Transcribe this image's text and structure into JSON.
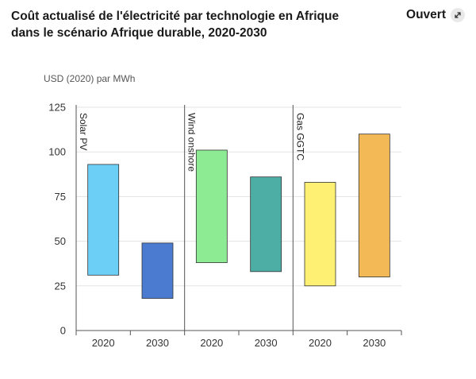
{
  "header": {
    "title": "Coût actualisé de l'électricité par technologie en Afrique dans le scénario Afrique durable, 2020-2030",
    "open_label": "Ouvert"
  },
  "chart_data": {
    "type": "bar",
    "unit_label": "USD (2020) par MWh",
    "ylim": [
      0,
      125
    ],
    "yticks": [
      0,
      25,
      50,
      75,
      100,
      125
    ],
    "grid": true,
    "groups": [
      {
        "name": "Solar PV",
        "bars": [
          {
            "category": "2020",
            "low": 31,
            "high": 93,
            "color": "#6ccff6"
          },
          {
            "category": "2030",
            "low": 18,
            "high": 49,
            "color": "#4a7bd0"
          }
        ]
      },
      {
        "name": "Wind onshore",
        "bars": [
          {
            "category": "2020",
            "low": 38,
            "high": 101,
            "color": "#8deb94"
          },
          {
            "category": "2030",
            "low": 33,
            "high": 86,
            "color": "#4caea4"
          }
        ]
      },
      {
        "name": "Gas GGTC",
        "bars": [
          {
            "category": "2020",
            "low": 25,
            "high": 83,
            "color": "#fdf072"
          },
          {
            "category": "2030",
            "low": 30,
            "high": 110,
            "color": "#f4b957"
          }
        ]
      }
    ]
  }
}
